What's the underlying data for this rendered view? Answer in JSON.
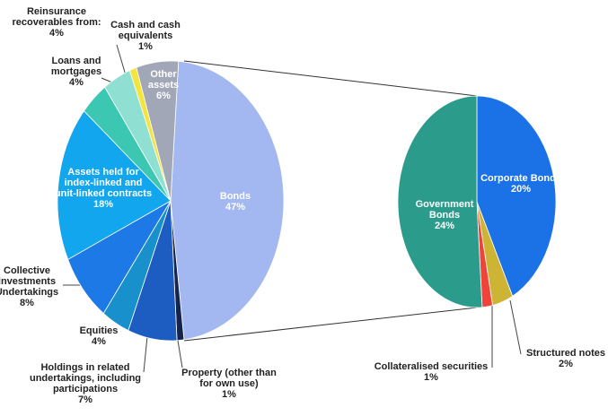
{
  "chart_data": [
    {
      "type": "pie",
      "categories": [
        "Bonds",
        "Property (other than for own use)",
        "Holdings in related undertakings, including participations",
        "Equities",
        "Collective Investments Undertakings",
        "Assets held for index-linked and unit-linked contracts",
        "Loans and mortgages",
        "Reinsurance recoverables from:",
        "Cash and cash equivalents",
        "Other assets"
      ],
      "values": [
        47,
        1,
        7,
        4,
        8,
        18,
        4,
        4,
        1,
        6
      ],
      "value_labels": [
        "47%",
        "1%",
        "7%",
        "4%",
        "8%",
        "18%",
        "4%",
        "4%",
        "1%",
        "6%"
      ],
      "colors": [
        "#a3b7f0",
        "#15244f",
        "#1d5cc0",
        "#1890cc",
        "#1c79e6",
        "#11a6ee",
        "#3cc7b3",
        "#8fe0d2",
        "#f3e43e",
        "#a1a7b6"
      ]
    },
    {
      "type": "pie",
      "categories": [
        "Corporate Bonds",
        "Structured notes",
        "Collateralised securities",
        "Government Bonds"
      ],
      "values": [
        20,
        2,
        1,
        24
      ],
      "value_labels": [
        "20%",
        "2%",
        "1%",
        "24%"
      ],
      "colors": [
        "#1b72e6",
        "#cdb434",
        "#f0433a",
        "#2b9c8c"
      ]
    }
  ]
}
